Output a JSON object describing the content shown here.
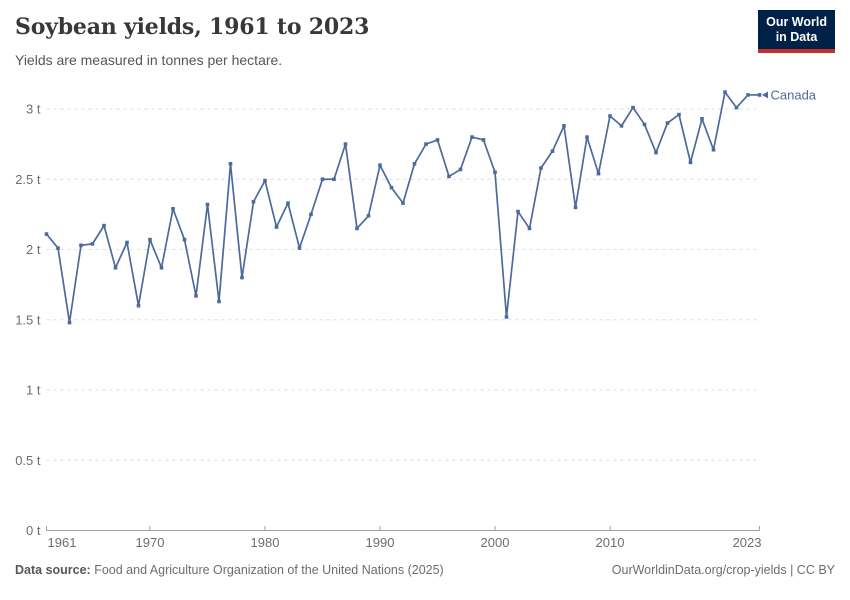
{
  "header": {
    "title": "Soybean yields, 1961 to 2023",
    "subtitle": "Yields are measured in tonnes per hectare.",
    "logo": {
      "line1": "Our World",
      "line2": "in Data"
    }
  },
  "chart_data": {
    "type": "line",
    "title": "Soybean yields, 1961 to 2023",
    "ylabel": "",
    "xlabel": "",
    "unit": "tonnes per hectare",
    "xlim": [
      1961,
      2023
    ],
    "ylim": [
      0,
      3.15
    ],
    "grid": "horizontal-dashed",
    "legend_position": "end-of-line-label",
    "x_ticks": [
      1961,
      1970,
      1980,
      1990,
      2000,
      2010,
      2023
    ],
    "x_tick_labels": [
      "1961",
      "1970",
      "1980",
      "1990",
      "2000",
      "2010",
      "2023"
    ],
    "y_ticks": [
      0,
      0.5,
      1,
      1.5,
      2,
      2.5,
      3
    ],
    "y_tick_labels": [
      "0 t",
      "0.5 t",
      "1 t",
      "1.5 t",
      "2 t",
      "2.5 t",
      "3 t"
    ],
    "series": [
      {
        "name": "Canada",
        "color": "#4c6a9c",
        "x": [
          1961,
          1962,
          1963,
          1964,
          1965,
          1966,
          1967,
          1968,
          1969,
          1970,
          1971,
          1972,
          1973,
          1974,
          1975,
          1976,
          1977,
          1978,
          1979,
          1980,
          1981,
          1982,
          1983,
          1984,
          1985,
          1986,
          1987,
          1988,
          1989,
          1990,
          1991,
          1992,
          1993,
          1994,
          1995,
          1996,
          1997,
          1998,
          1999,
          2000,
          2001,
          2002,
          2003,
          2004,
          2005,
          2006,
          2007,
          2008,
          2009,
          2010,
          2011,
          2012,
          2013,
          2014,
          2015,
          2016,
          2017,
          2018,
          2019,
          2020,
          2021,
          2022,
          2023
        ],
        "values": [
          2.11,
          2.01,
          1.48,
          2.03,
          2.04,
          2.17,
          1.87,
          2.05,
          1.6,
          2.07,
          1.87,
          2.29,
          2.07,
          1.67,
          2.32,
          1.63,
          2.61,
          1.8,
          2.34,
          2.49,
          2.16,
          2.33,
          2.01,
          2.25,
          2.5,
          2.5,
          2.75,
          2.15,
          2.24,
          2.6,
          2.44,
          2.33,
          2.61,
          2.75,
          2.78,
          2.52,
          2.57,
          2.8,
          2.78,
          2.55,
          1.52,
          2.27,
          2.15,
          2.58,
          2.7,
          2.88,
          2.3,
          2.8,
          2.54,
          2.95,
          2.88,
          3.01,
          2.89,
          2.69,
          2.9,
          2.96,
          2.62,
          2.93,
          2.71,
          3.12,
          3.01,
          3.1,
          3.1
        ]
      }
    ]
  },
  "footer": {
    "source_label": "Data source:",
    "source_text": " Food and Agriculture Organization of the United Nations (2025)",
    "credit": "OurWorldinData.org/crop-yields | CC BY"
  },
  "colors": {
    "series_line": "#4c6a9c",
    "grid": "#dcdcdc",
    "axis_line": "#a1a1a1",
    "axis_text": "#6e6e6e",
    "title_text": "#383838",
    "subtitle_text": "#565656",
    "logo_bg": "#002147",
    "logo_accent": "#c0312e"
  }
}
